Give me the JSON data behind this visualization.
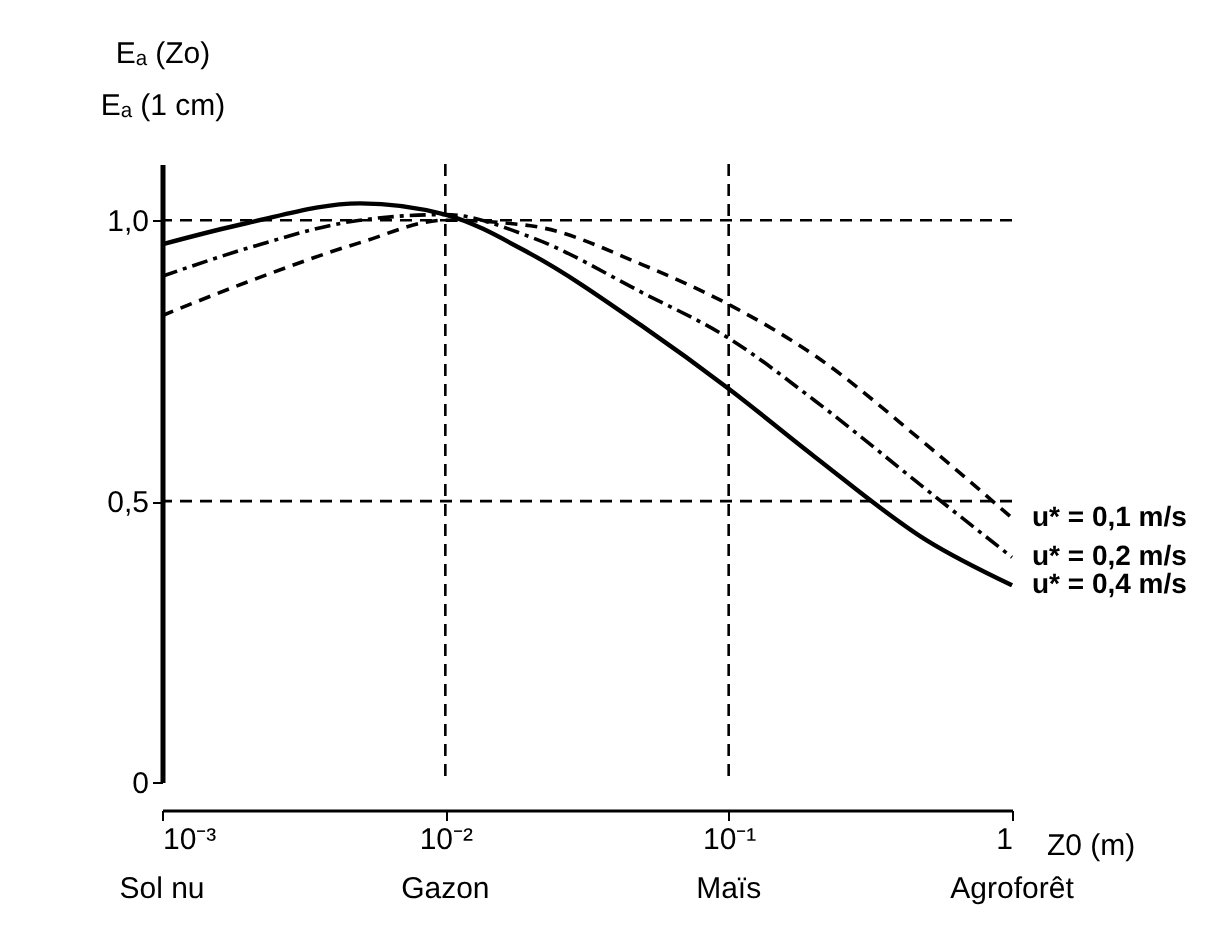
{
  "chart_data": {
    "type": "line",
    "ylabel": "Eₐ (Zo)\nEₐ (1 cm)",
    "xlabel": "Z0 (m)",
    "x": [
      0.001,
      0.002,
      0.005,
      0.01,
      0.02,
      0.05,
      0.1,
      0.2,
      0.5,
      1
    ],
    "series": [
      {
        "name": "u* = 0,1 m/s",
        "color": "#000000",
        "line_style": "dashed",
        "values": [
          0.83,
          0.89,
          0.96,
          1.0,
          0.99,
          0.92,
          0.85,
          0.76,
          0.6,
          0.47
        ]
      },
      {
        "name": "u* = 0,2 m/s",
        "color": "#000000",
        "line_style": "dotted",
        "values": [
          0.9,
          0.95,
          1.0,
          1.01,
          0.97,
          0.87,
          0.79,
          0.68,
          0.52,
          0.4
        ]
      },
      {
        "name": "u* = 0,4 m/s",
        "color": "#000000",
        "line_style": "solid",
        "values": [
          0.957,
          0.995,
          1.03,
          1.01,
          0.94,
          0.81,
          0.7,
          0.58,
          0.43,
          0.35
        ]
      }
    ],
    "log": "x",
    "xlim": [
      0.001,
      1
    ],
    "ylim": [
      0,
      1.1
    ],
    "xticks": [
      {
        "value": 0.001,
        "label": "10⁻³"
      },
      {
        "value": 0.01,
        "label": "10⁻²"
      },
      {
        "value": 0.1,
        "label": "10⁻¹"
      },
      1
    ],
    "annotations": [
      "Sol nu",
      "Gazon",
      "Maïs",
      "Agroforêt"
    ],
    "yticks": [
      {
        "value": 0,
        "label": "0"
      },
      {
        "value": 0.5,
        "label": "0,5"
      },
      {
        "value": 1.0,
        "label": "1,0"
      }
    ],
    "ref_lines": [
      {
        "axis": "x",
        "value": 0.01,
        "line_style": "dashed"
      },
      {
        "axis": "x",
        "value": 0.1,
        "line_style": "dashed"
      },
      {
        "axis": "y",
        "value": 1.0,
        "line_style": "dashed"
      },
      {
        "axis": "y",
        "value": 0.5,
        "line_style": "dashed"
      }
    ],
    "grid": false,
    "marker": "none"
  }
}
